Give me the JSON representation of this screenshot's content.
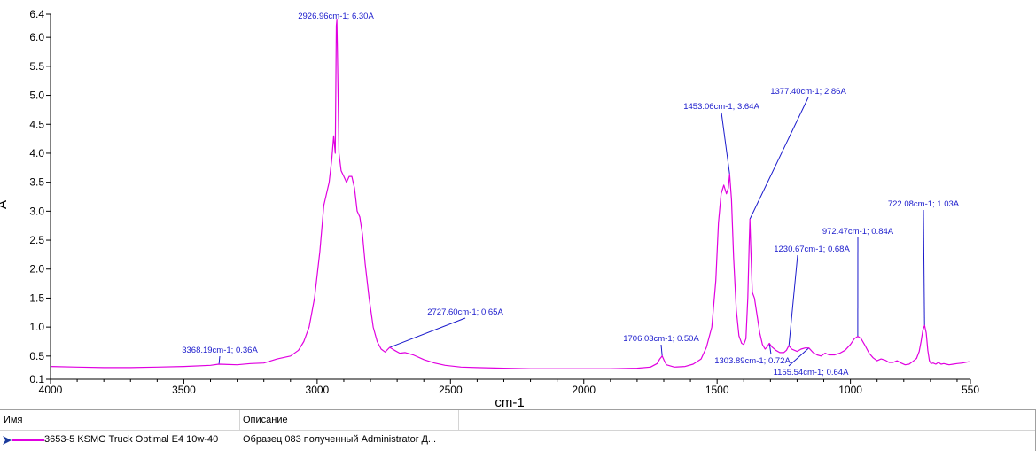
{
  "chart_data": {
    "type": "line",
    "xlabel": "cm-1",
    "ylabel": "A",
    "xlim": [
      4000,
      550
    ],
    "ylim": [
      0.1,
      6.4
    ],
    "x_ticks": [
      4000,
      3500,
      3000,
      2500,
      2000,
      1500,
      1000,
      550
    ],
    "y_ticks": [
      0.1,
      0.5,
      1.0,
      1.5,
      2.0,
      2.5,
      3.0,
      3.5,
      4.0,
      4.5,
      5.0,
      5.5,
      6.0,
      6.4
    ],
    "y_tick_labels": [
      "0.1",
      "0.5",
      "1.0",
      "1.5",
      "2.0",
      "2.5",
      "3.0",
      "3.5",
      "4.0",
      "4.5",
      "5.0",
      "5.5",
      "6.0",
      "6.4"
    ],
    "grid": false,
    "series": [
      {
        "name": "3653-5  KSMG Truck Optimal E4 10w-40",
        "color": "#e000e0",
        "points": [
          [
            4000,
            0.32
          ],
          [
            3900,
            0.31
          ],
          [
            3800,
            0.3
          ],
          [
            3700,
            0.3
          ],
          [
            3600,
            0.31
          ],
          [
            3500,
            0.32
          ],
          [
            3400,
            0.34
          ],
          [
            3369,
            0.36
          ],
          [
            3300,
            0.35
          ],
          [
            3250,
            0.37
          ],
          [
            3200,
            0.38
          ],
          [
            3150,
            0.45
          ],
          [
            3100,
            0.5
          ],
          [
            3070,
            0.6
          ],
          [
            3050,
            0.75
          ],
          [
            3030,
            1.0
          ],
          [
            3010,
            1.5
          ],
          [
            2990,
            2.3
          ],
          [
            2975,
            3.1
          ],
          [
            2965,
            3.3
          ],
          [
            2955,
            3.5
          ],
          [
            2945,
            3.9
          ],
          [
            2938,
            4.3
          ],
          [
            2932,
            4.0
          ],
          [
            2928,
            6.2
          ],
          [
            2926,
            6.3
          ],
          [
            2924,
            5.8
          ],
          [
            2918,
            4.0
          ],
          [
            2910,
            3.7
          ],
          [
            2900,
            3.6
          ],
          [
            2890,
            3.5
          ],
          [
            2880,
            3.6
          ],
          [
            2870,
            3.6
          ],
          [
            2860,
            3.4
          ],
          [
            2850,
            3.0
          ],
          [
            2840,
            2.9
          ],
          [
            2830,
            2.6
          ],
          [
            2820,
            2.1
          ],
          [
            2805,
            1.5
          ],
          [
            2790,
            1.0
          ],
          [
            2775,
            0.75
          ],
          [
            2760,
            0.62
          ],
          [
            2745,
            0.57
          ],
          [
            2728,
            0.65
          ],
          [
            2710,
            0.6
          ],
          [
            2690,
            0.55
          ],
          [
            2670,
            0.56
          ],
          [
            2640,
            0.52
          ],
          [
            2600,
            0.44
          ],
          [
            2560,
            0.38
          ],
          [
            2520,
            0.34
          ],
          [
            2460,
            0.31
          ],
          [
            2400,
            0.3
          ],
          [
            2300,
            0.29
          ],
          [
            2200,
            0.28
          ],
          [
            2100,
            0.28
          ],
          [
            2000,
            0.28
          ],
          [
            1900,
            0.28
          ],
          [
            1800,
            0.29
          ],
          [
            1750,
            0.31
          ],
          [
            1725,
            0.37
          ],
          [
            1715,
            0.45
          ],
          [
            1706,
            0.5
          ],
          [
            1698,
            0.42
          ],
          [
            1690,
            0.35
          ],
          [
            1660,
            0.31
          ],
          [
            1620,
            0.32
          ],
          [
            1590,
            0.36
          ],
          [
            1560,
            0.45
          ],
          [
            1540,
            0.65
          ],
          [
            1520,
            1.0
          ],
          [
            1505,
            1.8
          ],
          [
            1495,
            2.8
          ],
          [
            1485,
            3.3
          ],
          [
            1475,
            3.45
          ],
          [
            1465,
            3.3
          ],
          [
            1458,
            3.4
          ],
          [
            1453,
            3.64
          ],
          [
            1446,
            3.2
          ],
          [
            1438,
            2.2
          ],
          [
            1428,
            1.3
          ],
          [
            1418,
            0.85
          ],
          [
            1408,
            0.72
          ],
          [
            1400,
            0.7
          ],
          [
            1392,
            0.8
          ],
          [
            1385,
            1.5
          ],
          [
            1380,
            2.4
          ],
          [
            1377,
            2.86
          ],
          [
            1374,
            2.4
          ],
          [
            1368,
            1.6
          ],
          [
            1360,
            1.5
          ],
          [
            1350,
            1.2
          ],
          [
            1340,
            0.9
          ],
          [
            1330,
            0.7
          ],
          [
            1320,
            0.62
          ],
          [
            1312,
            0.66
          ],
          [
            1304,
            0.72
          ],
          [
            1295,
            0.66
          ],
          [
            1280,
            0.6
          ],
          [
            1265,
            0.56
          ],
          [
            1250,
            0.56
          ],
          [
            1240,
            0.6
          ],
          [
            1231,
            0.68
          ],
          [
            1220,
            0.62
          ],
          [
            1200,
            0.58
          ],
          [
            1185,
            0.62
          ],
          [
            1170,
            0.64
          ],
          [
            1156,
            0.64
          ],
          [
            1140,
            0.56
          ],
          [
            1125,
            0.52
          ],
          [
            1110,
            0.5
          ],
          [
            1095,
            0.55
          ],
          [
            1080,
            0.52
          ],
          [
            1060,
            0.52
          ],
          [
            1040,
            0.55
          ],
          [
            1020,
            0.6
          ],
          [
            1000,
            0.7
          ],
          [
            985,
            0.8
          ],
          [
            972,
            0.84
          ],
          [
            960,
            0.8
          ],
          [
            945,
            0.68
          ],
          [
            930,
            0.55
          ],
          [
            915,
            0.47
          ],
          [
            900,
            0.42
          ],
          [
            885,
            0.45
          ],
          [
            870,
            0.43
          ],
          [
            855,
            0.39
          ],
          [
            840,
            0.39
          ],
          [
            825,
            0.42
          ],
          [
            810,
            0.38
          ],
          [
            795,
            0.35
          ],
          [
            780,
            0.36
          ],
          [
            765,
            0.41
          ],
          [
            752,
            0.46
          ],
          [
            742,
            0.58
          ],
          [
            735,
            0.75
          ],
          [
            728,
            0.95
          ],
          [
            722,
            1.03
          ],
          [
            716,
            0.9
          ],
          [
            710,
            0.6
          ],
          [
            704,
            0.42
          ],
          [
            698,
            0.37
          ],
          [
            690,
            0.38
          ],
          [
            680,
            0.36
          ],
          [
            670,
            0.39
          ],
          [
            660,
            0.36
          ],
          [
            650,
            0.37
          ],
          [
            640,
            0.36
          ],
          [
            630,
            0.35
          ],
          [
            615,
            0.36
          ],
          [
            600,
            0.37
          ],
          [
            580,
            0.38
          ],
          [
            560,
            0.4
          ],
          [
            552,
            0.4
          ]
        ]
      }
    ],
    "annotations": [
      {
        "text": "2926.96cm-1; 6.30A",
        "x": 2926.96,
        "y": 6.3
      },
      {
        "text": "3368.19cm-1; 0.36A",
        "x": 3368.19,
        "y": 0.36
      },
      {
        "text": "2727.60cm-1; 0.65A",
        "x": 2727.6,
        "y": 0.65
      },
      {
        "text": "1706.03cm-1; 0.50A",
        "x": 1706.03,
        "y": 0.5
      },
      {
        "text": "1453.06cm-1; 3.64A",
        "x": 1453.06,
        "y": 3.64
      },
      {
        "text": "1377.40cm-1; 2.86A",
        "x": 1377.4,
        "y": 2.86
      },
      {
        "text": "1303.89cm-1; 0.72A",
        "x": 1303.89,
        "y": 0.72
      },
      {
        "text": "1230.67cm-1; 0.68A",
        "x": 1230.67,
        "y": 0.68
      },
      {
        "text": "1155.54cm-1; 0.64A",
        "x": 1155.54,
        "y": 0.64
      },
      {
        "text": "972.47cm-1; 0.84A",
        "x": 972.47,
        "y": 0.84
      },
      {
        "text": "722.08cm-1; 1.03A",
        "x": 722.08,
        "y": 1.03
      }
    ]
  },
  "legend": {
    "col_name": "Имя",
    "col_description": "Описание",
    "rows": [
      {
        "name": "3653-5  KSMG Truck Optimal E4 10w-40",
        "description": "Образец 083 полученный Administrator Д..."
      }
    ]
  },
  "colors": {
    "series": "#e000e0",
    "annotation": "#1a1acc",
    "axis": "#000000"
  }
}
